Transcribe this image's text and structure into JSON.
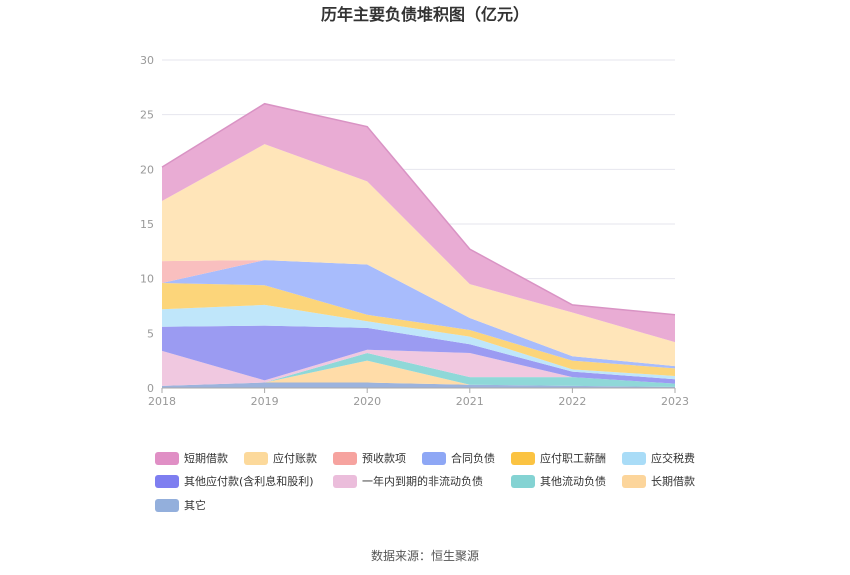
{
  "chart_data": {
    "type": "area",
    "stacked": true,
    "title": "历年主要负债堆积图（亿元）",
    "x": [
      "2018",
      "2019",
      "2020",
      "2021",
      "2022",
      "2023"
    ],
    "ylim": [
      0,
      30
    ],
    "yticks": [
      0,
      5,
      10,
      15,
      20,
      25,
      30
    ],
    "grid": true,
    "legend_position": "bottom",
    "series": [
      {
        "name": "其它",
        "color": "#9cb3dd",
        "values": [
          0.2,
          0.5,
          0.5,
          0.3,
          0.2,
          0.1
        ]
      },
      {
        "name": "长期借款",
        "color": "#ffdca8",
        "values": [
          0.0,
          0.0,
          2.0,
          0.0,
          0.0,
          0.0
        ]
      },
      {
        "name": "其他流动负债",
        "color": "#8fd8d8",
        "values": [
          0.0,
          0.0,
          0.7,
          0.7,
          0.8,
          0.3
        ]
      },
      {
        "name": "一年内到期的非流动负债",
        "color": "#f0c8e0",
        "values": [
          3.2,
          0.2,
          0.3,
          2.2,
          0.0,
          0.0
        ]
      },
      {
        "name": "其他应付款(含利息和股利)",
        "color": "#9b9bf2",
        "values": [
          2.2,
          5.0,
          2.0,
          0.8,
          0.5,
          0.4
        ]
      },
      {
        "name": "应交税费",
        "color": "#bfe6fa",
        "values": [
          1.6,
          1.9,
          0.6,
          0.7,
          0.2,
          0.3
        ]
      },
      {
        "name": "应付职工薪酬",
        "color": "#fcd57a",
        "values": [
          2.4,
          1.8,
          0.6,
          0.6,
          0.8,
          0.7
        ]
      },
      {
        "name": "合同负债",
        "color": "#a8bcfc",
        "values": [
          0.0,
          2.3,
          4.6,
          1.1,
          0.4,
          0.2
        ]
      },
      {
        "name": "预收款项",
        "color": "#f9bfbf",
        "values": [
          2.0,
          0.0,
          0.0,
          0.0,
          0.0,
          0.0
        ]
      },
      {
        "name": "应付账款",
        "color": "#ffe5b9",
        "values": [
          5.5,
          10.6,
          7.6,
          3.1,
          4.0,
          2.2
        ]
      },
      {
        "name": "短期借款",
        "color": "#e9acd4",
        "values": [
          3.1,
          3.7,
          5.0,
          3.2,
          0.7,
          2.5
        ]
      }
    ],
    "legend": [
      {
        "name": "短期借款",
        "color": "#e08fc5"
      },
      {
        "name": "应付账款",
        "color": "#fcd99b"
      },
      {
        "name": "预收款项",
        "color": "#f6a39f"
      },
      {
        "name": "合同负债",
        "color": "#8ea7f5"
      },
      {
        "name": "应付职工薪酬",
        "color": "#fbc342"
      },
      {
        "name": "应交税费",
        "color": "#a9dcf7"
      },
      {
        "name": "其他应付款(含利息和股利)",
        "color": "#7e7ef0"
      },
      {
        "name": "一年内到期的非流动负债",
        "color": "#ebbddb"
      },
      {
        "name": "其他流动负债",
        "color": "#84d3d3"
      },
      {
        "name": "长期借款",
        "color": "#fcd59b"
      },
      {
        "name": "其它",
        "color": "#93afdc"
      }
    ],
    "source": "数据来源：恒生聚源"
  }
}
